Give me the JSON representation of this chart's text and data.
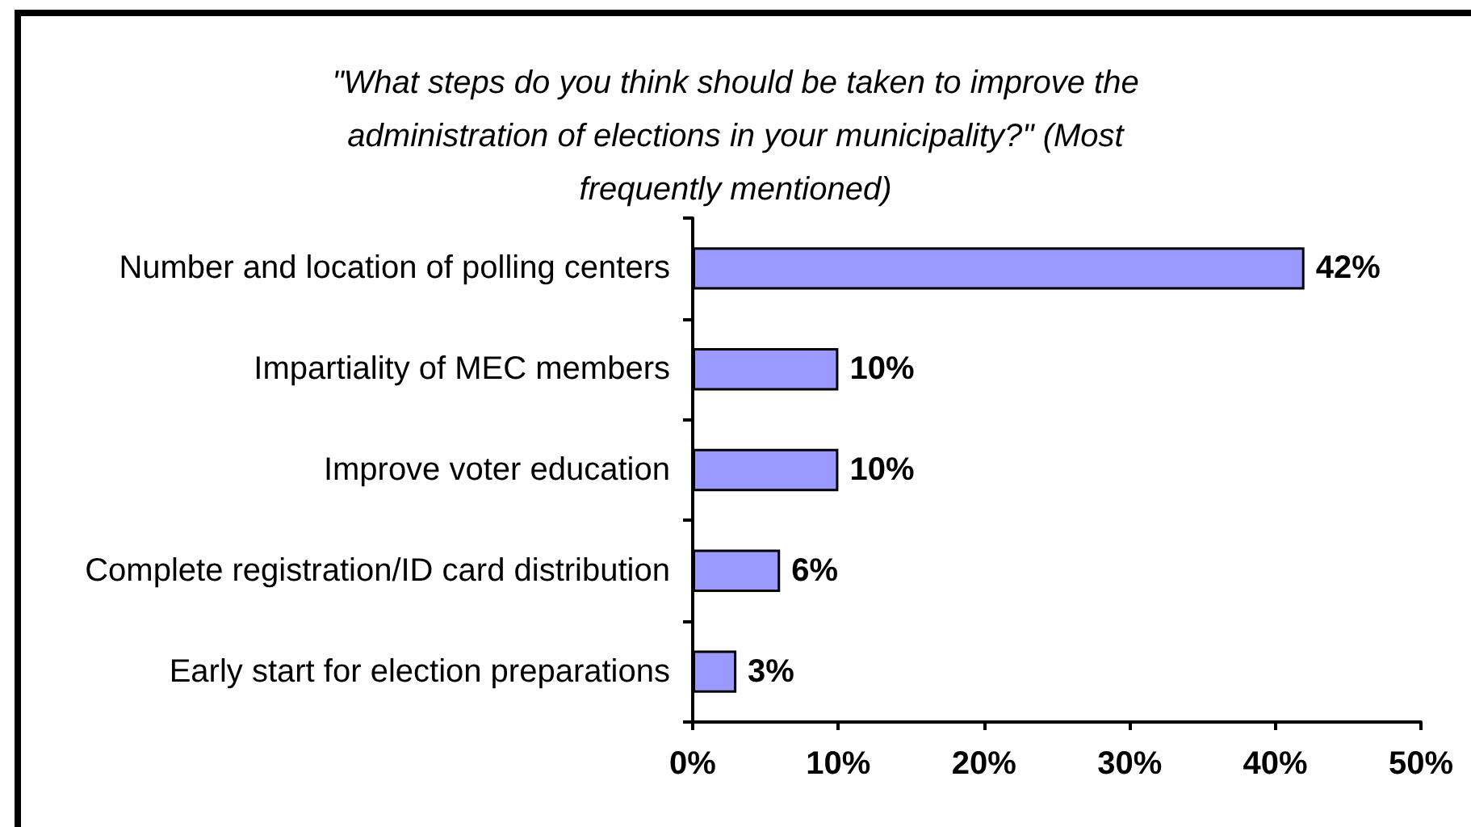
{
  "chart_data": {
    "type": "bar",
    "orientation": "horizontal",
    "title": "\"What steps do you think should be taken to improve the administration of elections in your municipality?\" (Most frequently mentioned)",
    "categories": [
      "Number and location of polling centers",
      "Impartiality of MEC members",
      "Improve voter education",
      "Complete registration/ID card distribution",
      "Early start for election preparations"
    ],
    "values": [
      42,
      10,
      10,
      6,
      3
    ],
    "value_labels": [
      "42%",
      "10%",
      "10%",
      "6%",
      "3%"
    ],
    "color": "#9999ff",
    "xlim": [
      0,
      50
    ],
    "xticks": [
      {
        "value": 0,
        "label": "0%"
      },
      {
        "value": 10,
        "label": "10%"
      },
      {
        "value": 20,
        "label": "20%"
      },
      {
        "value": 30,
        "label": "30%"
      },
      {
        "value": 40,
        "label": "40%"
      },
      {
        "value": 50,
        "label": "50%"
      }
    ],
    "grid": false
  }
}
